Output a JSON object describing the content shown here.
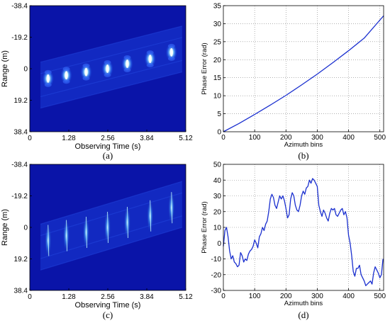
{
  "colors": {
    "background": "#ffffff",
    "image_bg": "#0a14a8",
    "image_bright": "#9ef0ff",
    "line": "#1a2fcf",
    "grid": "#808080"
  },
  "chart_data": [
    {
      "id": "a",
      "type": "heatmap",
      "caption": "(a)",
      "xlabel": "Observing Time (s)",
      "ylabel": "Range (m)",
      "x_ticks": [
        "0",
        "1.28",
        "2.56",
        "3.84",
        "5.12"
      ],
      "y_ticks": [
        "-38.4",
        "-19.2",
        "0",
        "19.2",
        "38.4"
      ],
      "xlim": [
        0,
        5.12
      ],
      "ylim": [
        -38.4,
        38.4
      ],
      "y_reversed": true,
      "colormap": "jet",
      "description_of_values": "bright scatterer streaks along a band rising from about range 5 m at t=0.5 s to about -10 m at t=5 s",
      "scatterers": [
        {
          "t": 0.6,
          "r": 6
        },
        {
          "t": 1.2,
          "r": 4
        },
        {
          "t": 1.85,
          "r": 2
        },
        {
          "t": 2.55,
          "r": 0
        },
        {
          "t": 3.2,
          "r": -3
        },
        {
          "t": 3.95,
          "r": -6
        },
        {
          "t": 4.65,
          "r": -10
        }
      ]
    },
    {
      "id": "b",
      "type": "line",
      "caption": "(b)",
      "xlabel": "Azimuth bins",
      "ylabel": "Phase Error (rad)",
      "xlim": [
        0,
        512
      ],
      "ylim": [
        0,
        35
      ],
      "x_ticks": [
        0,
        100,
        200,
        300,
        400,
        500
      ],
      "y_ticks": [
        0,
        5,
        10,
        15,
        20,
        25,
        30,
        35
      ],
      "grid": true,
      "series": [
        {
          "x": [
            0,
            50,
            100,
            150,
            200,
            250,
            300,
            350,
            400,
            450,
            512
          ],
          "values": [
            0,
            2.3,
            4.8,
            7.4,
            10.1,
            13.0,
            16.0,
            19.2,
            22.5,
            26.0,
            32.2
          ]
        }
      ]
    },
    {
      "id": "c",
      "type": "heatmap",
      "caption": "(c)",
      "xlabel": "Observing Time (s)",
      "ylabel": "Range (m)",
      "x_ticks": [
        "0",
        "1.28",
        "2.56",
        "3.84",
        "5.12"
      ],
      "y_ticks": [
        "-38.4",
        "-19.2",
        "0",
        "19.2",
        "38.4"
      ],
      "xlim": [
        0,
        5.12
      ],
      "ylim": [
        -38.4,
        38.4
      ],
      "y_reversed": true,
      "colormap": "jet",
      "description_of_values": "faint vertical scatterer streaks tilted along the same rising band",
      "scatterers": [
        {
          "t": 0.6,
          "r": 8
        },
        {
          "t": 1.2,
          "r": 5
        },
        {
          "t": 1.85,
          "r": 3
        },
        {
          "t": 2.55,
          "r": 0
        },
        {
          "t": 3.2,
          "r": -3
        },
        {
          "t": 3.95,
          "r": -7
        },
        {
          "t": 4.65,
          "r": -12
        }
      ]
    },
    {
      "id": "d",
      "type": "line",
      "caption": "(d)",
      "xlabel": "Azimuth bins",
      "ylabel": "Phase Error (rad)",
      "xlim": [
        0,
        512
      ],
      "ylim": [
        -30,
        50
      ],
      "x_ticks": [
        0,
        100,
        200,
        300,
        400,
        500
      ],
      "y_ticks": [
        -30,
        -20,
        -10,
        0,
        10,
        20,
        30,
        40,
        50
      ],
      "grid": true,
      "series": [
        {
          "x": [
            0,
            5,
            10,
            15,
            20,
            25,
            30,
            35,
            40,
            45,
            50,
            55,
            60,
            65,
            70,
            75,
            80,
            85,
            90,
            95,
            100,
            105,
            110,
            115,
            120,
            125,
            130,
            135,
            140,
            145,
            150,
            155,
            160,
            165,
            170,
            175,
            180,
            185,
            190,
            195,
            200,
            205,
            210,
            215,
            220,
            225,
            230,
            235,
            240,
            245,
            250,
            255,
            260,
            265,
            270,
            275,
            280,
            285,
            290,
            295,
            300,
            305,
            310,
            315,
            320,
            325,
            330,
            335,
            340,
            345,
            350,
            355,
            360,
            365,
            370,
            375,
            380,
            385,
            390,
            395,
            400,
            405,
            410,
            415,
            420,
            425,
            430,
            435,
            440,
            445,
            450,
            455,
            460,
            465,
            470,
            475,
            480,
            485,
            490,
            495,
            500,
            505,
            510
          ],
          "values": [
            -2,
            8,
            10,
            4,
            -5,
            -10,
            -8,
            -12,
            -13,
            -15,
            -14,
            -6,
            -8,
            -12,
            -10,
            -11,
            -7,
            -5,
            -4,
            -2,
            2,
            0,
            -3,
            4,
            6,
            10,
            8,
            12,
            14,
            20,
            28,
            31,
            29,
            24,
            22,
            26,
            30,
            28,
            30,
            27,
            22,
            16,
            18,
            28,
            32,
            30,
            24,
            21,
            20,
            24,
            30,
            33,
            31,
            35,
            36,
            40,
            38,
            41,
            40,
            38,
            36,
            24,
            20,
            17,
            21,
            19,
            16,
            14,
            19,
            22,
            21,
            22,
            18,
            17,
            19,
            21,
            22,
            18,
            20,
            16,
            5,
            0,
            -8,
            -18,
            -21,
            -16,
            -16,
            -14,
            -20,
            -22,
            -24,
            -27,
            -26,
            -25,
            -24,
            -26,
            -19,
            -15,
            -17,
            -19,
            -22,
            -20,
            -10
          ]
        }
      ]
    }
  ]
}
